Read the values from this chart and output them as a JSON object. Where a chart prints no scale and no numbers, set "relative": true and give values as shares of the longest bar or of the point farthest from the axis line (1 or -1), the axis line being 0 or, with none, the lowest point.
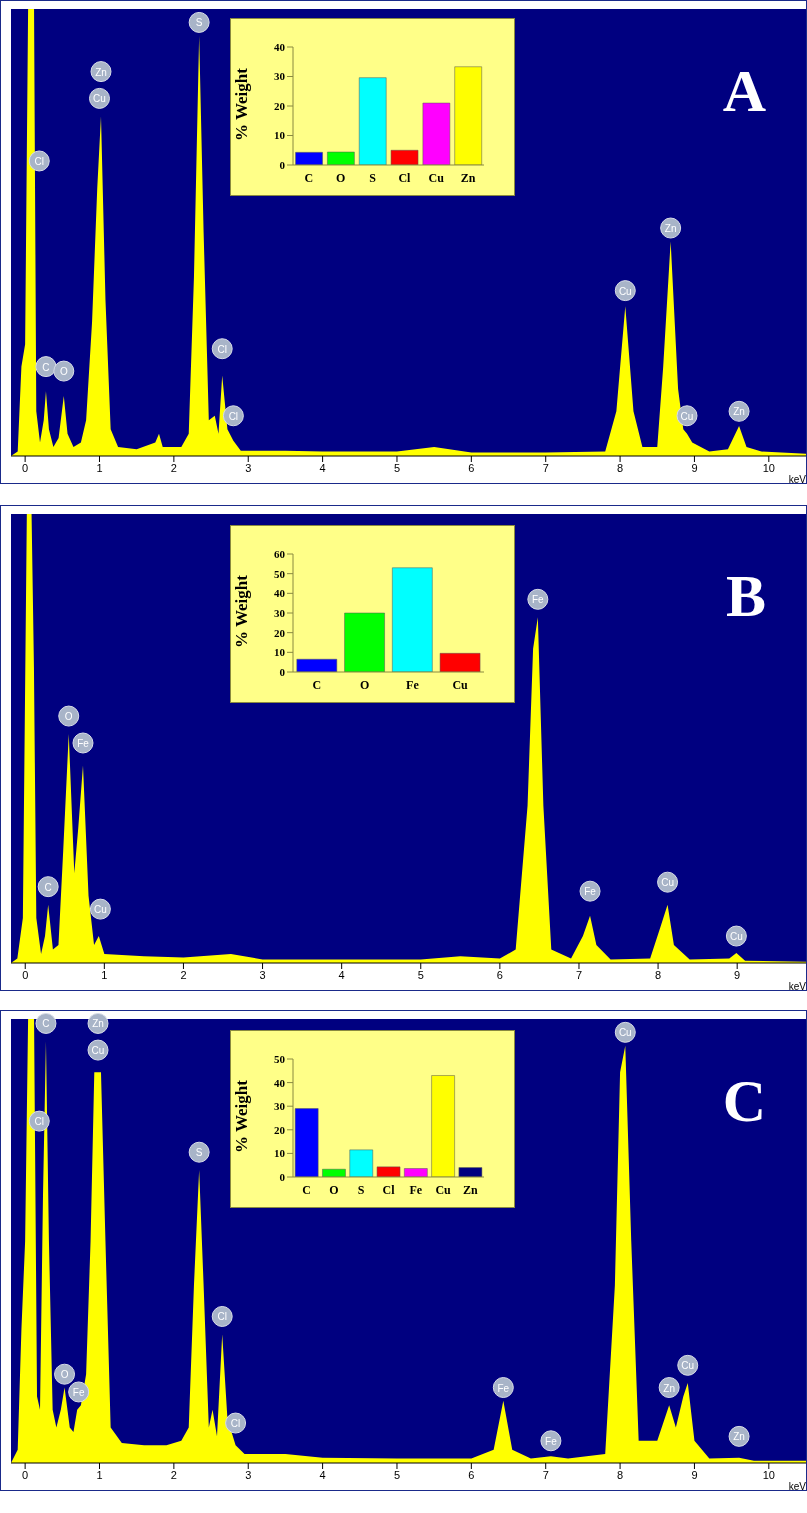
{
  "chart_data": [
    {
      "type": "area",
      "relative": true,
      "xlabel": "keV",
      "xlim": [
        -0.19,
        10.5
      ],
      "xticks": [
        0,
        1,
        2,
        3,
        4,
        5,
        6,
        7,
        8,
        9,
        10
      ],
      "color": "#ffff00",
      "x": [
        -0.19,
        -0.1,
        -0.05,
        0.0,
        0.04,
        0.12,
        0.15,
        0.2,
        0.25,
        0.28,
        0.32,
        0.38,
        0.45,
        0.52,
        0.57,
        0.65,
        0.75,
        0.82,
        0.9,
        0.97,
        1.02,
        1.08,
        1.15,
        1.25,
        1.5,
        1.75,
        1.8,
        1.85,
        2.1,
        2.2,
        2.27,
        2.34,
        2.4,
        2.47,
        2.55,
        2.6,
        2.65,
        2.72,
        2.8,
        2.9,
        3.5,
        4,
        5,
        5.5,
        6,
        7,
        7.8,
        7.95,
        8.07,
        8.18,
        8.3,
        8.5,
        8.58,
        8.68,
        8.78,
        8.85,
        8.9,
        8.97,
        9.2,
        9.45,
        9.55,
        9.6,
        9.7,
        9.9,
        10.5
      ],
      "values": [
        0,
        0.01,
        0.2,
        0.25,
        1,
        1,
        0.1,
        0.03,
        0.08,
        0.145,
        0.06,
        0.02,
        0.04,
        0.134,
        0.05,
        0.02,
        0.03,
        0.08,
        0.3,
        0.6,
        0.76,
        0.35,
        0.06,
        0.02,
        0.015,
        0.03,
        0.05,
        0.02,
        0.02,
        0.05,
        0.4,
        0.94,
        0.5,
        0.08,
        0.09,
        0.05,
        0.18,
        0.06,
        0.034,
        0.012,
        0.012,
        0.01,
        0.01,
        0.02,
        0.008,
        0.008,
        0.01,
        0.1,
        0.335,
        0.1,
        0.02,
        0.02,
        0.2,
        0.48,
        0.15,
        0.06,
        0.05,
        0.03,
        0.01,
        0.015,
        0.05,
        0.067,
        0.02,
        0.01,
        0.005
      ],
      "annotations": [
        "A",
        {
          "text": "Cl",
          "x": 0.19,
          "y": 0.66
        },
        {
          "text": "C",
          "x": 0.28,
          "y": 0.2
        },
        {
          "text": "O",
          "x": 0.52,
          "y": 0.19
        },
        {
          "text": "Zn",
          "x": 1.02,
          "y": 0.86
        },
        {
          "text": "Cu",
          "x": 1.0,
          "y": 0.8
        },
        {
          "text": "S",
          "x": 2.34,
          "y": 0.97
        },
        {
          "text": "Cl",
          "x": 2.65,
          "y": 0.24
        },
        {
          "text": "Cl",
          "x": 2.8,
          "y": 0.09
        },
        {
          "text": "Cu",
          "x": 8.07,
          "y": 0.37
        },
        {
          "text": "Zn",
          "x": 8.68,
          "y": 0.51
        },
        {
          "text": "Cu",
          "x": 8.9,
          "y": 0.09
        },
        {
          "text": "Zn",
          "x": 9.6,
          "y": 0.1
        }
      ]
    },
    {
      "type": "bar",
      "ylabel": "% Weight",
      "categories": [
        "C",
        "O",
        "S",
        "Cl",
        "Cu",
        "Zn"
      ],
      "values": [
        4.3,
        4.4,
        29.6,
        5,
        21,
        33.3
      ],
      "colors": [
        "#0000ff",
        "#00ff00",
        "#00ffff",
        "#ff0000",
        "#ff00ff",
        "#ffff00"
      ],
      "ylim": [
        0,
        40
      ],
      "yticks": [
        0,
        10,
        20,
        30,
        40
      ]
    },
    {
      "type": "area",
      "relative": true,
      "xlabel": "keV",
      "xlim": [
        -0.18,
        9.87
      ],
      "xticks": [
        0,
        1,
        2,
        3,
        4,
        5,
        6,
        7,
        8,
        9
      ],
      "color": "#ffff00",
      "x": [
        -0.18,
        -0.1,
        -0.03,
        0.02,
        0.08,
        0.11,
        0.14,
        0.2,
        0.25,
        0.29,
        0.35,
        0.42,
        0.48,
        0.55,
        0.62,
        0.67,
        0.73,
        0.8,
        0.87,
        0.93,
        1.0,
        1.5,
        2,
        2.6,
        3,
        4,
        5,
        5.5,
        6,
        6.2,
        6.35,
        6.42,
        6.48,
        6.55,
        6.65,
        6.9,
        7.05,
        7.14,
        7.22,
        7.4,
        7.9,
        8.03,
        8.12,
        8.2,
        8.4,
        8.9,
        8.99,
        9.1,
        9.87
      ],
      "values": [
        0,
        0.01,
        0.1,
        1,
        1,
        0.66,
        0.1,
        0.02,
        0.06,
        0.13,
        0.03,
        0.04,
        0.25,
        0.51,
        0.2,
        0.3,
        0.44,
        0.15,
        0.04,
        0.06,
        0.02,
        0.015,
        0.012,
        0.02,
        0.008,
        0.008,
        0.008,
        0.015,
        0.01,
        0.03,
        0.35,
        0.7,
        0.77,
        0.35,
        0.03,
        0.01,
        0.06,
        0.105,
        0.04,
        0.008,
        0.01,
        0.08,
        0.13,
        0.04,
        0.008,
        0.01,
        0.022,
        0.005,
        0.003
      ],
      "annotations": [
        "B",
        {
          "text": "O",
          "x": 0.55,
          "y": 0.55
        },
        {
          "text": "Fe",
          "x": 0.73,
          "y": 0.49
        },
        {
          "text": "C",
          "x": 0.29,
          "y": 0.17
        },
        {
          "text": "Cu",
          "x": 0.95,
          "y": 0.12
        },
        {
          "text": "Fe",
          "x": 6.48,
          "y": 0.81
        },
        {
          "text": "Fe",
          "x": 7.14,
          "y": 0.16
        },
        {
          "text": "Cu",
          "x": 8.12,
          "y": 0.18
        },
        {
          "text": "Cu",
          "x": 8.99,
          "y": 0.06
        }
      ]
    },
    {
      "type": "bar",
      "ylabel": "% Weight",
      "categories": [
        "C",
        "O",
        "Fe",
        "Cu"
      ],
      "values": [
        6.5,
        30,
        53,
        9.5
      ],
      "colors": [
        "#0000ff",
        "#00ff00",
        "#00ffff",
        "#ff0000"
      ],
      "ylim": [
        0,
        60
      ],
      "yticks": [
        0,
        10,
        20,
        30,
        40,
        50,
        60
      ]
    },
    {
      "type": "area",
      "relative": true,
      "xlabel": "keV",
      "xlim": [
        -0.19,
        10.5
      ],
      "xticks": [
        0,
        1,
        2,
        3,
        4,
        5,
        6,
        7,
        8,
        9,
        10
      ],
      "color": "#ffff00",
      "x": [
        -0.19,
        -0.1,
        -0.05,
        0.0,
        0.04,
        0.12,
        0.16,
        0.2,
        0.24,
        0.28,
        0.32,
        0.37,
        0.42,
        0.48,
        0.53,
        0.6,
        0.65,
        0.7,
        0.75,
        0.82,
        0.88,
        0.93,
        1.02,
        1.08,
        1.15,
        1.3,
        1.6,
        1.9,
        2.1,
        2.2,
        2.27,
        2.34,
        2.4,
        2.47,
        2.52,
        2.58,
        2.65,
        2.72,
        2.83,
        2.95,
        3.5,
        4,
        5,
        6,
        6.3,
        6.43,
        6.55,
        6.8,
        7.07,
        7.3,
        7.8,
        7.93,
        8.0,
        8.07,
        8.15,
        8.25,
        8.5,
        8.66,
        8.75,
        8.85,
        8.91,
        9.0,
        9.2,
        9.6,
        9.8,
        10.5
      ],
      "values": [
        0,
        0.03,
        0.3,
        0.5,
        1,
        1,
        0.15,
        0.12,
        0.6,
        0.95,
        0.5,
        0.12,
        0.08,
        0.12,
        0.17,
        0.08,
        0.07,
        0.12,
        0.13,
        0.2,
        0.5,
        0.88,
        0.88,
        0.5,
        0.08,
        0.045,
        0.04,
        0.04,
        0.05,
        0.08,
        0.4,
        0.66,
        0.4,
        0.08,
        0.12,
        0.06,
        0.29,
        0.1,
        0.04,
        0.02,
        0.02,
        0.012,
        0.01,
        0.01,
        0.03,
        0.14,
        0.03,
        0.01,
        0.015,
        0.01,
        0.02,
        0.4,
        0.88,
        0.94,
        0.5,
        0.05,
        0.05,
        0.13,
        0.08,
        0.15,
        0.18,
        0.05,
        0.01,
        0.012,
        0.005,
        0.005
      ],
      "annotations": [
        "C",
        {
          "text": "C",
          "x": 0.28,
          "y": 0.99
        },
        {
          "text": "Zn",
          "x": 0.98,
          "y": 0.99
        },
        {
          "text": "Cu",
          "x": 0.98,
          "y": 0.93
        },
        {
          "text": "Cl",
          "x": 0.19,
          "y": 0.77
        },
        {
          "text": "S",
          "x": 2.34,
          "y": 0.7
        },
        {
          "text": "O",
          "x": 0.53,
          "y": 0.2
        },
        {
          "text": "Fe",
          "x": 0.72,
          "y": 0.16
        },
        {
          "text": "Cl",
          "x": 2.65,
          "y": 0.33
        },
        {
          "text": "Cl",
          "x": 2.83,
          "y": 0.09
        },
        {
          "text": "Fe",
          "x": 6.43,
          "y": 0.17
        },
        {
          "text": "Fe",
          "x": 7.07,
          "y": 0.05
        },
        {
          "text": "Cu",
          "x": 8.07,
          "y": 0.97
        },
        {
          "text": "Zn",
          "x": 8.66,
          "y": 0.17
        },
        {
          "text": "Cu",
          "x": 8.91,
          "y": 0.22
        },
        {
          "text": "Zn",
          "x": 9.6,
          "y": 0.06
        }
      ]
    },
    {
      "type": "bar",
      "ylabel": "% Weight",
      "categories": [
        "C",
        "O",
        "S",
        "Cl",
        "Fe",
        "Cu",
        "Zn"
      ],
      "values": [
        29,
        3.3,
        11.5,
        4.3,
        3.6,
        43,
        4
      ],
      "colors": [
        "#0000ff",
        "#00ff00",
        "#00ffff",
        "#ff0000",
        "#ff00ff",
        "#ffff00",
        "#000080"
      ],
      "ylim": [
        0,
        50
      ],
      "yticks": [
        0,
        10,
        20,
        30,
        40,
        50
      ]
    }
  ]
}
